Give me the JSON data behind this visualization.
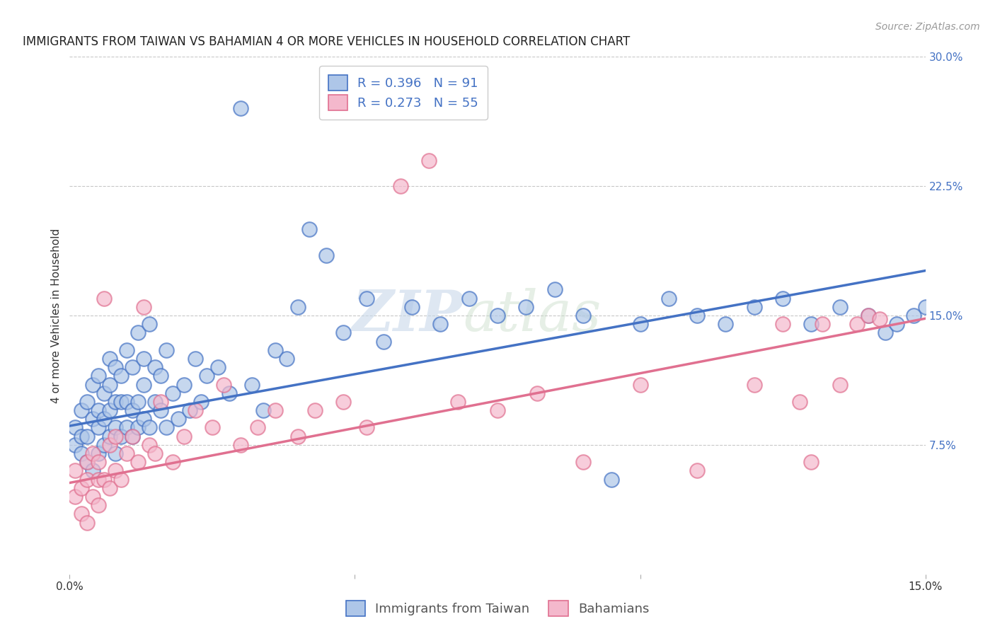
{
  "title": "IMMIGRANTS FROM TAIWAN VS BAHAMIAN 4 OR MORE VEHICLES IN HOUSEHOLD CORRELATION CHART",
  "source": "Source: ZipAtlas.com",
  "ylabel": "4 or more Vehicles in Household",
  "watermark_zip": "ZIP",
  "watermark_atlas": "atlas",
  "xlim": [
    0.0,
    0.15
  ],
  "ylim": [
    0.0,
    0.3
  ],
  "xticks": [
    0.0,
    0.05,
    0.1,
    0.15
  ],
  "xtick_labels": [
    "0.0%",
    "",
    "",
    "15.0%"
  ],
  "ytick_labels_right": [
    "7.5%",
    "15.0%",
    "22.5%",
    "30.0%"
  ],
  "yticks_right": [
    0.075,
    0.15,
    0.225,
    0.3
  ],
  "taiwan_R": 0.396,
  "taiwan_N": 91,
  "bahamian_R": 0.273,
  "bahamian_N": 55,
  "taiwan_color": "#aec6e8",
  "taiwan_line_color": "#4472c4",
  "bahamian_color": "#f4b8cc",
  "bahamian_line_color": "#e07090",
  "background_color": "#ffffff",
  "title_fontsize": 12,
  "legend_fontsize": 13,
  "axis_label_fontsize": 11,
  "tick_fontsize": 11,
  "source_fontsize": 10,
  "taiwan_scatter_x": [
    0.001,
    0.001,
    0.002,
    0.002,
    0.002,
    0.003,
    0.003,
    0.003,
    0.004,
    0.004,
    0.004,
    0.005,
    0.005,
    0.005,
    0.005,
    0.006,
    0.006,
    0.006,
    0.007,
    0.007,
    0.007,
    0.007,
    0.008,
    0.008,
    0.008,
    0.008,
    0.009,
    0.009,
    0.009,
    0.01,
    0.01,
    0.01,
    0.011,
    0.011,
    0.011,
    0.012,
    0.012,
    0.012,
    0.013,
    0.013,
    0.013,
    0.014,
    0.014,
    0.015,
    0.015,
    0.016,
    0.016,
    0.017,
    0.017,
    0.018,
    0.019,
    0.02,
    0.021,
    0.022,
    0.023,
    0.024,
    0.026,
    0.028,
    0.03,
    0.032,
    0.034,
    0.036,
    0.038,
    0.04,
    0.042,
    0.045,
    0.048,
    0.052,
    0.055,
    0.06,
    0.065,
    0.07,
    0.075,
    0.08,
    0.085,
    0.09,
    0.095,
    0.1,
    0.105,
    0.11,
    0.115,
    0.12,
    0.125,
    0.13,
    0.135,
    0.14,
    0.143,
    0.145,
    0.148,
    0.15,
    0.152
  ],
  "taiwan_scatter_y": [
    0.085,
    0.075,
    0.07,
    0.08,
    0.095,
    0.065,
    0.08,
    0.1,
    0.06,
    0.09,
    0.11,
    0.07,
    0.085,
    0.095,
    0.115,
    0.075,
    0.09,
    0.105,
    0.08,
    0.095,
    0.11,
    0.125,
    0.07,
    0.085,
    0.1,
    0.12,
    0.08,
    0.1,
    0.115,
    0.085,
    0.1,
    0.13,
    0.08,
    0.095,
    0.12,
    0.085,
    0.1,
    0.14,
    0.09,
    0.11,
    0.125,
    0.085,
    0.145,
    0.1,
    0.12,
    0.095,
    0.115,
    0.085,
    0.13,
    0.105,
    0.09,
    0.11,
    0.095,
    0.125,
    0.1,
    0.115,
    0.12,
    0.105,
    0.27,
    0.11,
    0.095,
    0.13,
    0.125,
    0.155,
    0.2,
    0.185,
    0.14,
    0.16,
    0.135,
    0.155,
    0.145,
    0.16,
    0.15,
    0.155,
    0.165,
    0.15,
    0.055,
    0.145,
    0.16,
    0.15,
    0.145,
    0.155,
    0.16,
    0.145,
    0.155,
    0.15,
    0.14,
    0.145,
    0.15,
    0.155,
    0.148
  ],
  "bahamian_scatter_x": [
    0.001,
    0.001,
    0.002,
    0.002,
    0.003,
    0.003,
    0.003,
    0.004,
    0.004,
    0.005,
    0.005,
    0.005,
    0.006,
    0.006,
    0.007,
    0.007,
    0.008,
    0.008,
    0.009,
    0.01,
    0.011,
    0.012,
    0.013,
    0.014,
    0.015,
    0.016,
    0.018,
    0.02,
    0.022,
    0.025,
    0.027,
    0.03,
    0.033,
    0.036,
    0.04,
    0.043,
    0.048,
    0.052,
    0.058,
    0.063,
    0.068,
    0.075,
    0.082,
    0.09,
    0.1,
    0.11,
    0.12,
    0.125,
    0.128,
    0.13,
    0.132,
    0.135,
    0.138,
    0.14,
    0.142
  ],
  "bahamian_scatter_y": [
    0.06,
    0.045,
    0.05,
    0.035,
    0.065,
    0.03,
    0.055,
    0.045,
    0.07,
    0.055,
    0.065,
    0.04,
    0.055,
    0.16,
    0.05,
    0.075,
    0.06,
    0.08,
    0.055,
    0.07,
    0.08,
    0.065,
    0.155,
    0.075,
    0.07,
    0.1,
    0.065,
    0.08,
    0.095,
    0.085,
    0.11,
    0.075,
    0.085,
    0.095,
    0.08,
    0.095,
    0.1,
    0.085,
    0.225,
    0.24,
    0.1,
    0.095,
    0.105,
    0.065,
    0.11,
    0.06,
    0.11,
    0.145,
    0.1,
    0.065,
    0.145,
    0.11,
    0.145,
    0.15,
    0.148
  ]
}
